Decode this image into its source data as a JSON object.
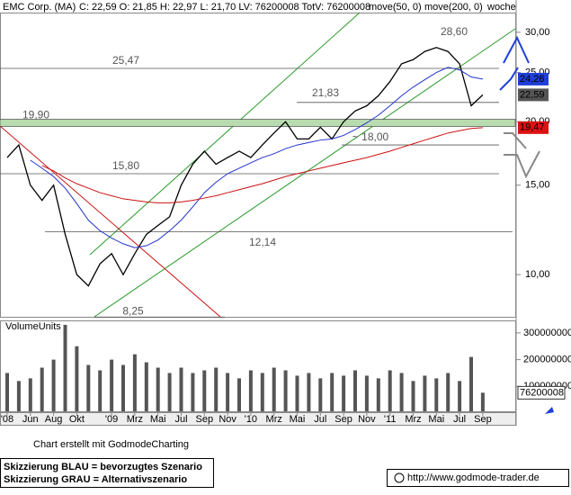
{
  "chart_data": {
    "type": "line",
    "title": "EMC Corp. (MA)",
    "info": "C: 22,59 O: 21,85 H: 22,97 L: 21,70 LV: 76200008 TotV: 76200008",
    "period": "woche",
    "log_scale": true,
    "categories": [
      "'08",
      null,
      "Jun",
      null,
      "Aug",
      null,
      "Okt",
      null,
      null,
      "'09",
      null,
      "Mrz",
      null,
      "Mai",
      null,
      "Jul",
      null,
      "Sep",
      null,
      "Nov",
      null,
      "'10",
      null,
      "Mrz",
      null,
      "Mai",
      null,
      "Jul",
      null,
      "Sep",
      null,
      "Nov",
      null,
      "'11",
      null,
      "Mrz",
      null,
      "Mai",
      null,
      "Jul",
      null,
      "Sep"
    ],
    "series": [
      {
        "color": "#000000",
        "values": [
          17,
          18,
          15,
          14,
          15,
          12,
          10,
          9.5,
          10.5,
          11,
          10,
          11,
          12,
          12.5,
          13,
          15,
          16.5,
          17.5,
          16.5,
          17,
          17.5,
          17,
          18,
          19,
          20,
          18.5,
          18.5,
          19.5,
          18.5,
          20,
          21,
          21.5,
          22.5,
          24,
          26,
          26.5,
          27.5,
          28,
          27.5,
          26,
          21.5,
          22.59
        ]
      },
      {
        "name": "move(50, 0)",
        "color": "#2233cc",
        "values": [
          null,
          null,
          16.8,
          16.2,
          15.6,
          14.8,
          13.8,
          12.8,
          12.2,
          11.8,
          11.5,
          11.3,
          11.4,
          11.7,
          12.2,
          12.8,
          13.6,
          14.5,
          15.2,
          15.8,
          16.2,
          16.6,
          17,
          17.3,
          17.7,
          18,
          18.2,
          18.4,
          18.5,
          18.8,
          19.3,
          19.9,
          20.6,
          21.5,
          22.5,
          23.4,
          24.2,
          25,
          25.6,
          25.3,
          24.5,
          24.26
        ]
      },
      {
        "name": "move(200, 0)",
        "color": "#cc1111",
        "values": [
          null,
          null,
          null,
          16.4,
          16,
          15.5,
          15.1,
          14.8,
          14.5,
          14.3,
          14.1,
          14,
          13.9,
          13.85,
          13.85,
          13.9,
          14,
          14.15,
          14.3,
          14.5,
          14.7,
          14.9,
          15.1,
          15.35,
          15.6,
          15.8,
          16,
          16.2,
          16.4,
          16.6,
          16.8,
          17,
          17.25,
          17.5,
          17.8,
          18.1,
          18.4,
          18.7,
          19,
          19.2,
          19.4,
          19.47
        ]
      }
    ],
    "ylim": [
      8.26,
      32.8
    ],
    "yticks": [
      {
        "value": 30,
        "label": "30,00"
      },
      {
        "value": 25,
        "label": "25,00"
      },
      {
        "value": 20,
        "label": "20,00"
      },
      {
        "value": 15,
        "label": "15,00"
      },
      {
        "value": 10,
        "label": "10,00"
      }
    ],
    "levels": [
      {
        "value": 25.47,
        "label": "25,47"
      },
      {
        "value": 21.83,
        "label": "21,83"
      },
      {
        "value": 19.9,
        "label": "19,90"
      },
      {
        "value": 18,
        "label": "~ 18,00"
      },
      {
        "value": 15.8,
        "label": "15,80"
      },
      {
        "value": 12.14,
        "label": "12,14"
      },
      {
        "value": 8.25,
        "label": "8,25"
      },
      {
        "value": 28.6,
        "label": "28,60"
      }
    ],
    "last_markers": [
      {
        "value": 24.26,
        "label": "24,26",
        "color": "#1f3fd8"
      },
      {
        "value": 22.59,
        "label": "22,59",
        "color": "#555555"
      },
      {
        "value": 19.47,
        "label": "19,47",
        "color": "#dd1111"
      }
    ],
    "volume": {
      "title": "VolumeUnits",
      "color": "#555555",
      "values": [
        150000000,
        120000000,
        130000000,
        170000000,
        200000000,
        330000000,
        250000000,
        180000000,
        160000000,
        200000000,
        180000000,
        220000000,
        190000000,
        170000000,
        150000000,
        170000000,
        150000000,
        160000000,
        170000000,
        150000000,
        130000000,
        160000000,
        150000000,
        170000000,
        160000000,
        140000000,
        150000000,
        130000000,
        150000000,
        140000000,
        160000000,
        140000000,
        130000000,
        160000000,
        150000000,
        120000000,
        140000000,
        130000000,
        150000000,
        120000000,
        210000000,
        76200008
      ],
      "ylim": [
        0,
        340000000
      ],
      "yticks": [
        300000000,
        200000000,
        100000000
      ],
      "last_label": "76200008"
    }
  },
  "footer": {
    "credit": "Chart erstellt mit GodmodeCharting",
    "blue": "Skizzierung BLAU = bevorzugtes Szenario",
    "gray": "Skizzierung GRAU = Alternativszenario",
    "url": "http://www.godmode-trader.de"
  }
}
